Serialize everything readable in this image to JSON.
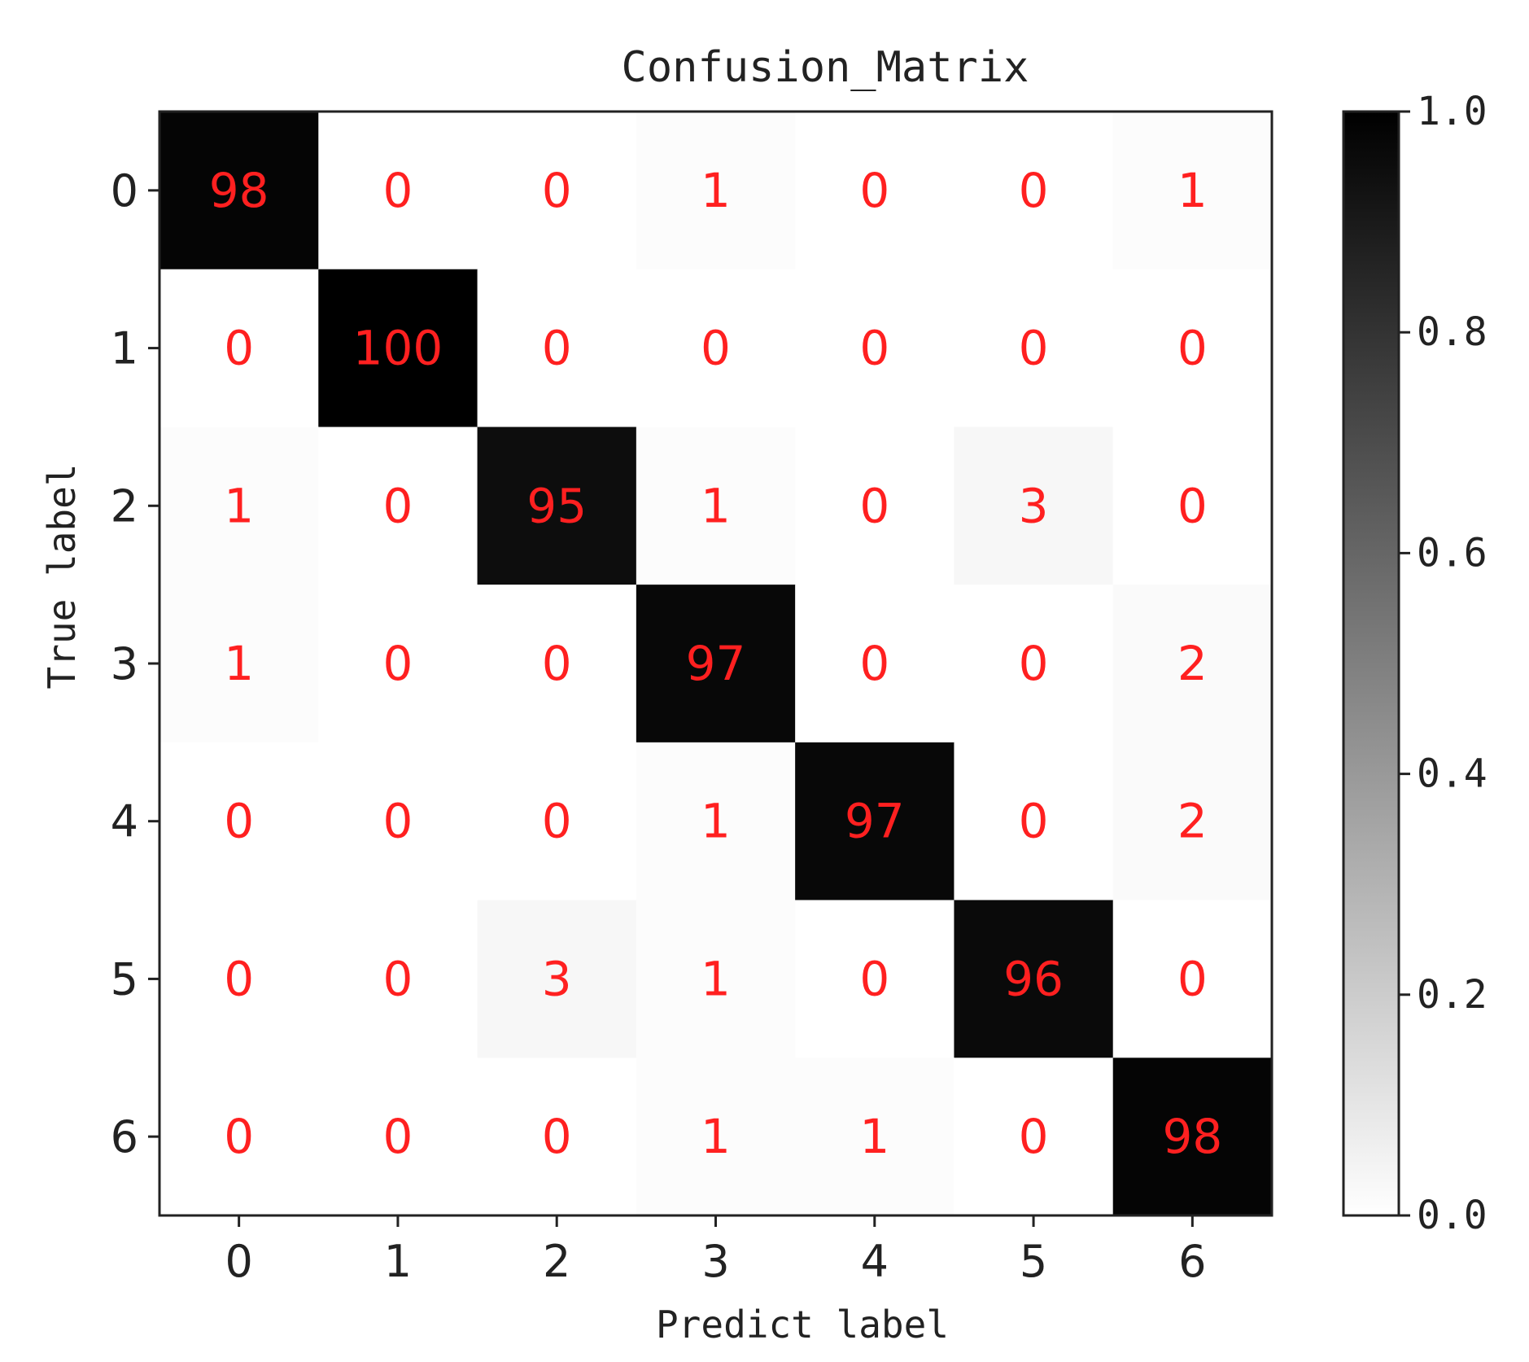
{
  "chart_data": {
    "type": "heatmap",
    "title": "Confusion_Matrix",
    "xlabel": "Predict label",
    "ylabel": "True label",
    "x_categories": [
      "0",
      "1",
      "2",
      "3",
      "4",
      "5",
      "6"
    ],
    "y_categories": [
      "0",
      "1",
      "2",
      "3",
      "4",
      "5",
      "6"
    ],
    "values": [
      [
        98,
        0,
        0,
        1,
        0,
        0,
        1
      ],
      [
        0,
        100,
        0,
        0,
        0,
        0,
        0
      ],
      [
        1,
        0,
        95,
        1,
        0,
        3,
        0
      ],
      [
        1,
        0,
        0,
        97,
        0,
        0,
        2
      ],
      [
        0,
        0,
        0,
        1,
        97,
        0,
        2
      ],
      [
        0,
        0,
        3,
        1,
        0,
        96,
        0
      ],
      [
        0,
        0,
        0,
        1,
        1,
        0,
        98
      ]
    ],
    "colorbar": {
      "range": [
        0.0,
        1.0
      ],
      "ticks": [
        0.0,
        0.2,
        0.4,
        0.6,
        0.8,
        1.0
      ],
      "tick_labels": [
        "0.0",
        "0.2",
        "0.4",
        "0.6",
        "0.8",
        "1.0"
      ],
      "colormap": "Greys"
    },
    "colors": {
      "annotation": "#ff2020",
      "text": "#222222"
    }
  }
}
